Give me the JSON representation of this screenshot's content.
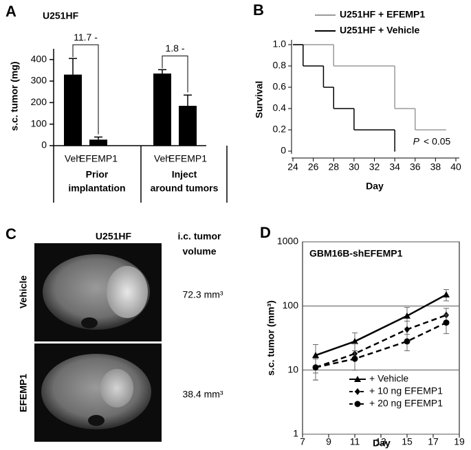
{
  "chart_data": [
    {
      "type": "bar",
      "panel": "A",
      "title": "U251HF",
      "y_label": "s.c. tumor (mg)",
      "categories": [
        "Veh",
        "EFEMP1",
        "Veh",
        "EFEMP1"
      ],
      "values": [
        330,
        28,
        335,
        185
      ],
      "errors": [
        75,
        12,
        18,
        50
      ],
      "color": "#000000",
      "groups": [
        [
          "Prior",
          "implantation"
        ],
        [
          "Inject",
          "around tumors"
        ]
      ],
      "annotations": [
        "11.7 -",
        "1.8 -"
      ],
      "ylim": [
        0,
        450
      ],
      "yticks": [
        0,
        100,
        200,
        300,
        400
      ]
    },
    {
      "type": "step",
      "panel": "B",
      "x_label": "Day",
      "y_label": "Survival",
      "series": [
        {
          "name": "U251HF + EFEMP1",
          "color": "#999999",
          "x": [
            24,
            28,
            34,
            36,
            39
          ],
          "values": [
            1,
            0.8,
            0.4,
            0.2,
            0.2
          ]
        },
        {
          "name": "U251HF + Vehicle",
          "color": "#000000",
          "x": [
            24,
            25,
            27,
            28,
            30,
            34
          ],
          "values": [
            1,
            0.8,
            0.6,
            0.4,
            0.2,
            0
          ]
        }
      ],
      "annotation": [
        "P",
        "< 0.05"
      ],
      "xlim": [
        24,
        40
      ],
      "xticks": [
        24,
        26,
        28,
        30,
        32,
        34,
        36,
        38,
        40
      ],
      "ylim": [
        0,
        1
      ],
      "yticks": [
        0,
        0.2,
        0.4,
        0.6,
        0.8,
        {
          "value": 1,
          "label": "1.0"
        }
      ]
    },
    {
      "type": "line",
      "panel": "D",
      "title": "GBM16B-shEFEMP1",
      "x_label": "Day",
      "y_label": "s.c. tumor (mm³)",
      "log_y": true,
      "grid": true,
      "series": [
        {
          "name": "+ Vehicle",
          "color": "#000000",
          "line_style": "solid",
          "marker": "triangle",
          "x": [
            8,
            11,
            15,
            18
          ],
          "values": [
            17,
            28,
            70,
            150
          ],
          "errors": [
            8,
            10,
            25,
            30
          ]
        },
        {
          "name": "+ 10 ng EFEMP1",
          "color": "#000000",
          "line_style": "dashed",
          "marker": "diamond",
          "x": [
            8,
            11,
            15,
            18
          ],
          "values": [
            11,
            18,
            43,
            72
          ],
          "errors": [
            4,
            8,
            15,
            20
          ]
        },
        {
          "name": "+ 20 ng EFEMP1",
          "color": "#000000",
          "line_style": "dashed",
          "marker": "circle",
          "x": [
            8,
            11,
            15,
            18
          ],
          "values": [
            11,
            15,
            28,
            55
          ],
          "errors": [
            4,
            5,
            8,
            18
          ]
        }
      ],
      "xlim": [
        7,
        19
      ],
      "xticks": [
        7,
        9,
        11,
        13,
        15,
        17,
        19
      ],
      "ylim": [
        1,
        1000
      ],
      "yticks": [
        1,
        10,
        100,
        1000
      ]
    }
  ],
  "panel_c": {
    "panel": "C",
    "title": "U251HF",
    "column_header": [
      "i.c. tumor",
      "volume"
    ],
    "rows": [
      {
        "label": "Vehicle",
        "volume": "72.3 mm³"
      },
      {
        "label": "EFEMP1",
        "volume": "38.4 mm³"
      }
    ]
  }
}
